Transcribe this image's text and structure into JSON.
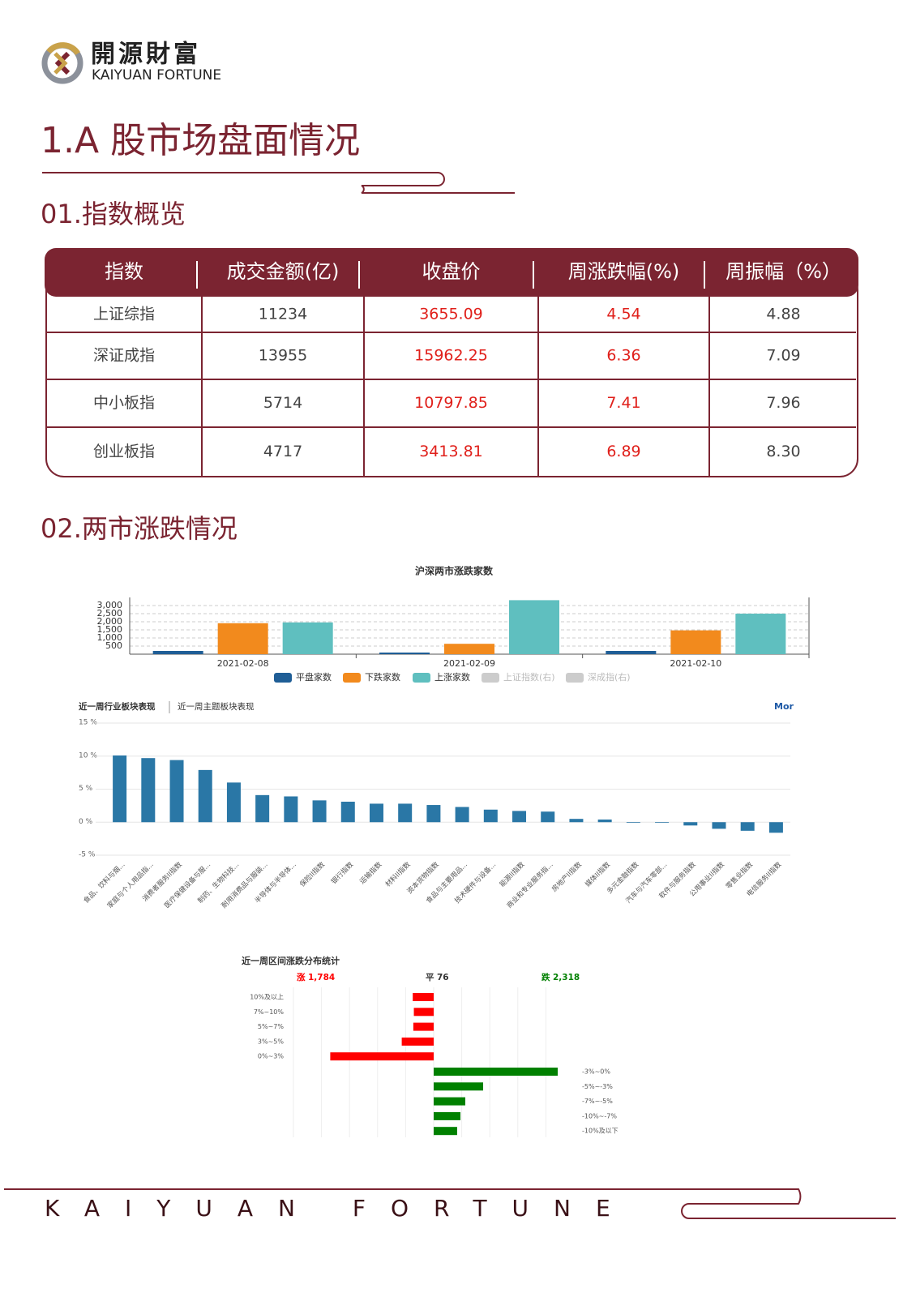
{
  "header": {
    "logo_cn": "開源財富",
    "logo_en": "KAIYUAN FORTUNE"
  },
  "title": "1.A 股市场盘面情况",
  "section1": "01.指数概览",
  "table": {
    "columns": [
      "指数",
      "成交金额(亿)",
      "收盘价",
      "周涨跌幅(%)",
      "周振幅（%）"
    ],
    "rows": [
      [
        "上证综指",
        "11234",
        "3655.09",
        "4.54",
        "4.88"
      ],
      [
        "深证成指",
        "13955",
        "15962.25",
        "6.36",
        "7.09"
      ],
      [
        "中小板指",
        "5714",
        "10797.85",
        "7.41",
        "7.96"
      ],
      [
        "创业板指",
        "4717",
        "3413.81",
        "6.89",
        "8.30"
      ]
    ]
  },
  "section2": "02.两市涨跌情况",
  "chart_data": [
    {
      "type": "bar",
      "title": "沪深两市涨跌家数",
      "categories": [
        "2021-02-08",
        "2021-02-09",
        "2021-02-10"
      ],
      "series": [
        {
          "name": "平盘家数",
          "color": "#1f5e96",
          "values": [
            200,
            100,
            200
          ]
        },
        {
          "name": "下跌家数",
          "color": "#f28a1d",
          "values": [
            1910,
            640,
            1470
          ]
        },
        {
          "name": "上涨家数",
          "color": "#5fbfbf",
          "values": [
            1960,
            3330,
            2500
          ]
        },
        {
          "name": "上证指数(右)",
          "color": "#cccccc",
          "values": [
            null,
            null,
            null
          ],
          "hidden": true
        },
        {
          "name": "深成指(右)",
          "color": "#cccccc",
          "values": [
            null,
            null,
            null
          ],
          "hidden": true
        }
      ],
      "ylim": [
        0,
        3500
      ],
      "yticks": [
        500,
        {
          "value": 1000,
          "label": "1,000"
        },
        {
          "value": 1500,
          "label": "1,500"
        },
        {
          "value": 2000,
          "label": "2,000"
        },
        {
          "value": 2500,
          "label": "2,500"
        },
        {
          "value": 3000,
          "label": "3,000"
        }
      ],
      "grid": true
    },
    {
      "type": "bar",
      "tabs": [
        "近一周行业板块表现",
        "近一周主题板块表现"
      ],
      "more": "Mor",
      "categories": [
        "食品、饮料与烟...",
        "家庭与个人用品指...",
        "消费者服务II指数",
        "医疗保健设备与服...",
        "制药、生物科技...",
        "耐用消费品与服装...",
        "半导体与半导体...",
        "保险II指数",
        "银行指数",
        "运输指数",
        "材料II指数",
        "资本货物指数",
        "食品与主要用品...",
        "技术硬件与设备...",
        "能源II指数",
        "商业和专业服务指...",
        "房地产II指数",
        "媒体II指数",
        "多元金融指数",
        "汽车与汽车零部...",
        "软件与服务指数",
        "公用事业II指数",
        "零售业指数",
        "电信服务II指数"
      ],
      "values": [
        10.1,
        9.7,
        9.4,
        7.9,
        6.0,
        4.1,
        3.9,
        3.3,
        3.1,
        2.8,
        2.8,
        2.6,
        2.3,
        1.9,
        1.7,
        1.6,
        0.5,
        0.4,
        -0.1,
        -0.1,
        -0.5,
        -1.0,
        -1.3,
        -1.6
      ],
      "color": "#2a77a6",
      "ylim": [
        -5,
        15
      ],
      "yticks": [
        {
          "value": -5,
          "label": "-5 %"
        },
        {
          "value": 0,
          "label": "0 %"
        },
        {
          "value": 5,
          "label": "5 %"
        },
        {
          "value": 10,
          "label": "10 %"
        },
        {
          "value": 15,
          "label": "15 %"
        }
      ],
      "grid": true
    },
    {
      "type": "diverging_bar",
      "title": "近一周区间涨跌分布统计",
      "groups": [
        {
          "name": "涨",
          "total": 1784,
          "total_label": "1,784",
          "color": "#ff0000",
          "categories": [
            "10%及以上",
            "7%~10%",
            "5%~7%",
            "3%~5%",
            "0%~3%"
          ],
          "values": [
            190,
            180,
            185,
            290,
            939
          ]
        },
        {
          "name": "平",
          "total": 76,
          "color": "#333333"
        },
        {
          "name": "跌",
          "total": 2318,
          "total_label": "2,318",
          "color": "#008000",
          "categories": [
            "-3%~0%",
            "-5%~-3%",
            "-7%~-5%",
            "-10%~-7%",
            "-10%及以下"
          ],
          "values": [
            1126,
            449,
            287,
            243,
            213
          ]
        }
      ]
    }
  ],
  "footer": "KAIYUAN FORTUNE"
}
